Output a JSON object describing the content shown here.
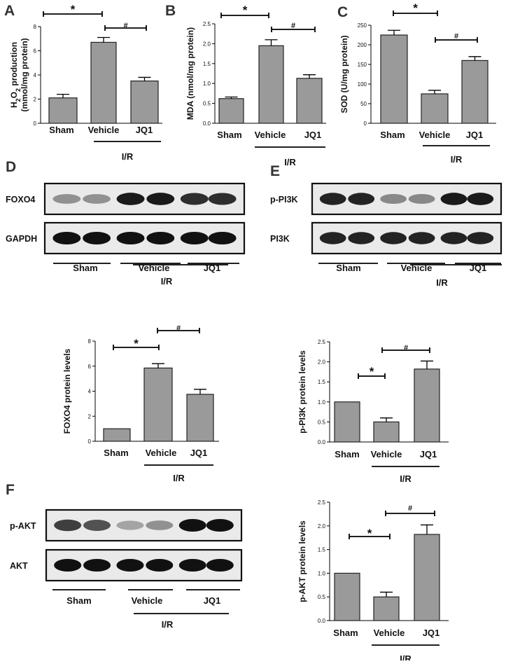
{
  "panels": {
    "A": "A",
    "B": "B",
    "C": "C",
    "D": "D",
    "E": "E",
    "F": "F"
  },
  "groups": {
    "sham": "Sham",
    "vehicle": "Vehicle",
    "jq1": "JQ1",
    "ir": "I/R"
  },
  "significance": {
    "star": "*",
    "hash": "#"
  },
  "blots": {
    "d": {
      "row1": "FOXO4",
      "row2": "GAPDH",
      "band_intensity": [
        [
          0.3,
          0.3,
          0.95,
          0.95,
          0.85,
          0.85
        ],
        [
          1,
          1,
          1,
          1,
          1,
          1
        ]
      ]
    },
    "e": {
      "row1": "p-PI3K",
      "row2": "PI3K",
      "band_intensity": [
        [
          0.9,
          0.9,
          0.35,
          0.35,
          0.95,
          0.95
        ],
        [
          0.9,
          0.9,
          0.9,
          0.9,
          0.9,
          0.9
        ]
      ]
    },
    "f": {
      "row1": "p-AKT",
      "row2": "AKT",
      "band_intensity": [
        [
          0.75,
          0.65,
          0.2,
          0.3,
          1,
          1
        ],
        [
          1,
          1,
          1,
          1,
          1,
          1
        ]
      ]
    }
  },
  "chart_data": [
    {
      "id": "A",
      "type": "bar",
      "ylabel_pre": "H",
      "ylabel_sub1": "2",
      "ylabel_mid": "O",
      "ylabel_sub2": "2",
      "ylabel_post": " production",
      "ylabel2": "(mmol/mg protein)",
      "categories": [
        "Sham",
        "Vehicle",
        "JQ1"
      ],
      "values": [
        2.1,
        6.7,
        3.5
      ],
      "errors": [
        0.3,
        0.4,
        0.3
      ],
      "ylim": [
        0,
        8
      ],
      "ticks": [
        "0",
        "2",
        "4",
        "6",
        "8"
      ]
    },
    {
      "id": "B",
      "type": "bar",
      "ylabel": "MDA (nmol/mg protein)",
      "categories": [
        "Sham",
        "Vehicle",
        "JQ1"
      ],
      "values": [
        0.62,
        1.95,
        1.13
      ],
      "errors": [
        0.04,
        0.15,
        0.09
      ],
      "ylim": [
        0,
        2.5
      ],
      "ticks": [
        "0.0",
        "0.5",
        "1.0",
        "1.5",
        "2.0",
        "2.5"
      ]
    },
    {
      "id": "C",
      "type": "bar",
      "ylabel": "SOD (U/mg protein)",
      "categories": [
        "Sham",
        "Vehicle",
        "JQ1"
      ],
      "values": [
        225,
        75,
        160
      ],
      "errors": [
        12,
        9,
        10
      ],
      "ylim": [
        0,
        250
      ],
      "ticks": [
        "0",
        "50",
        "100",
        "150",
        "200",
        "250"
      ]
    },
    {
      "id": "D",
      "type": "bar",
      "ylabel": "FOXO4 protein levels",
      "categories": [
        "Sham",
        "Vehicle",
        "JQ1"
      ],
      "values": [
        1.0,
        5.85,
        3.75
      ],
      "errors": [
        0,
        0.35,
        0.4
      ],
      "ylim": [
        0,
        8
      ],
      "ticks": [
        "0",
        "2",
        "4",
        "6",
        "8"
      ]
    },
    {
      "id": "E",
      "type": "bar",
      "ylabel": "p-PI3K protein levels",
      "categories": [
        "Sham",
        "Vehicle",
        "JQ1"
      ],
      "values": [
        1.0,
        0.5,
        1.82
      ],
      "errors": [
        0,
        0.1,
        0.2
      ],
      "ylim": [
        0,
        2.5
      ],
      "ticks": [
        "0.0",
        "0.5",
        "1.0",
        "1.5",
        "2.0",
        "2.5"
      ]
    },
    {
      "id": "F",
      "type": "bar",
      "ylabel": "p-AKT protein levels",
      "categories": [
        "Sham",
        "Vehicle",
        "JQ1"
      ],
      "values": [
        1.0,
        0.5,
        1.82
      ],
      "errors": [
        0,
        0.1,
        0.2
      ],
      "ylim": [
        0,
        2.5
      ],
      "ticks": [
        "0.0",
        "0.5",
        "1.0",
        "1.5",
        "2.0",
        "2.5"
      ]
    }
  ]
}
